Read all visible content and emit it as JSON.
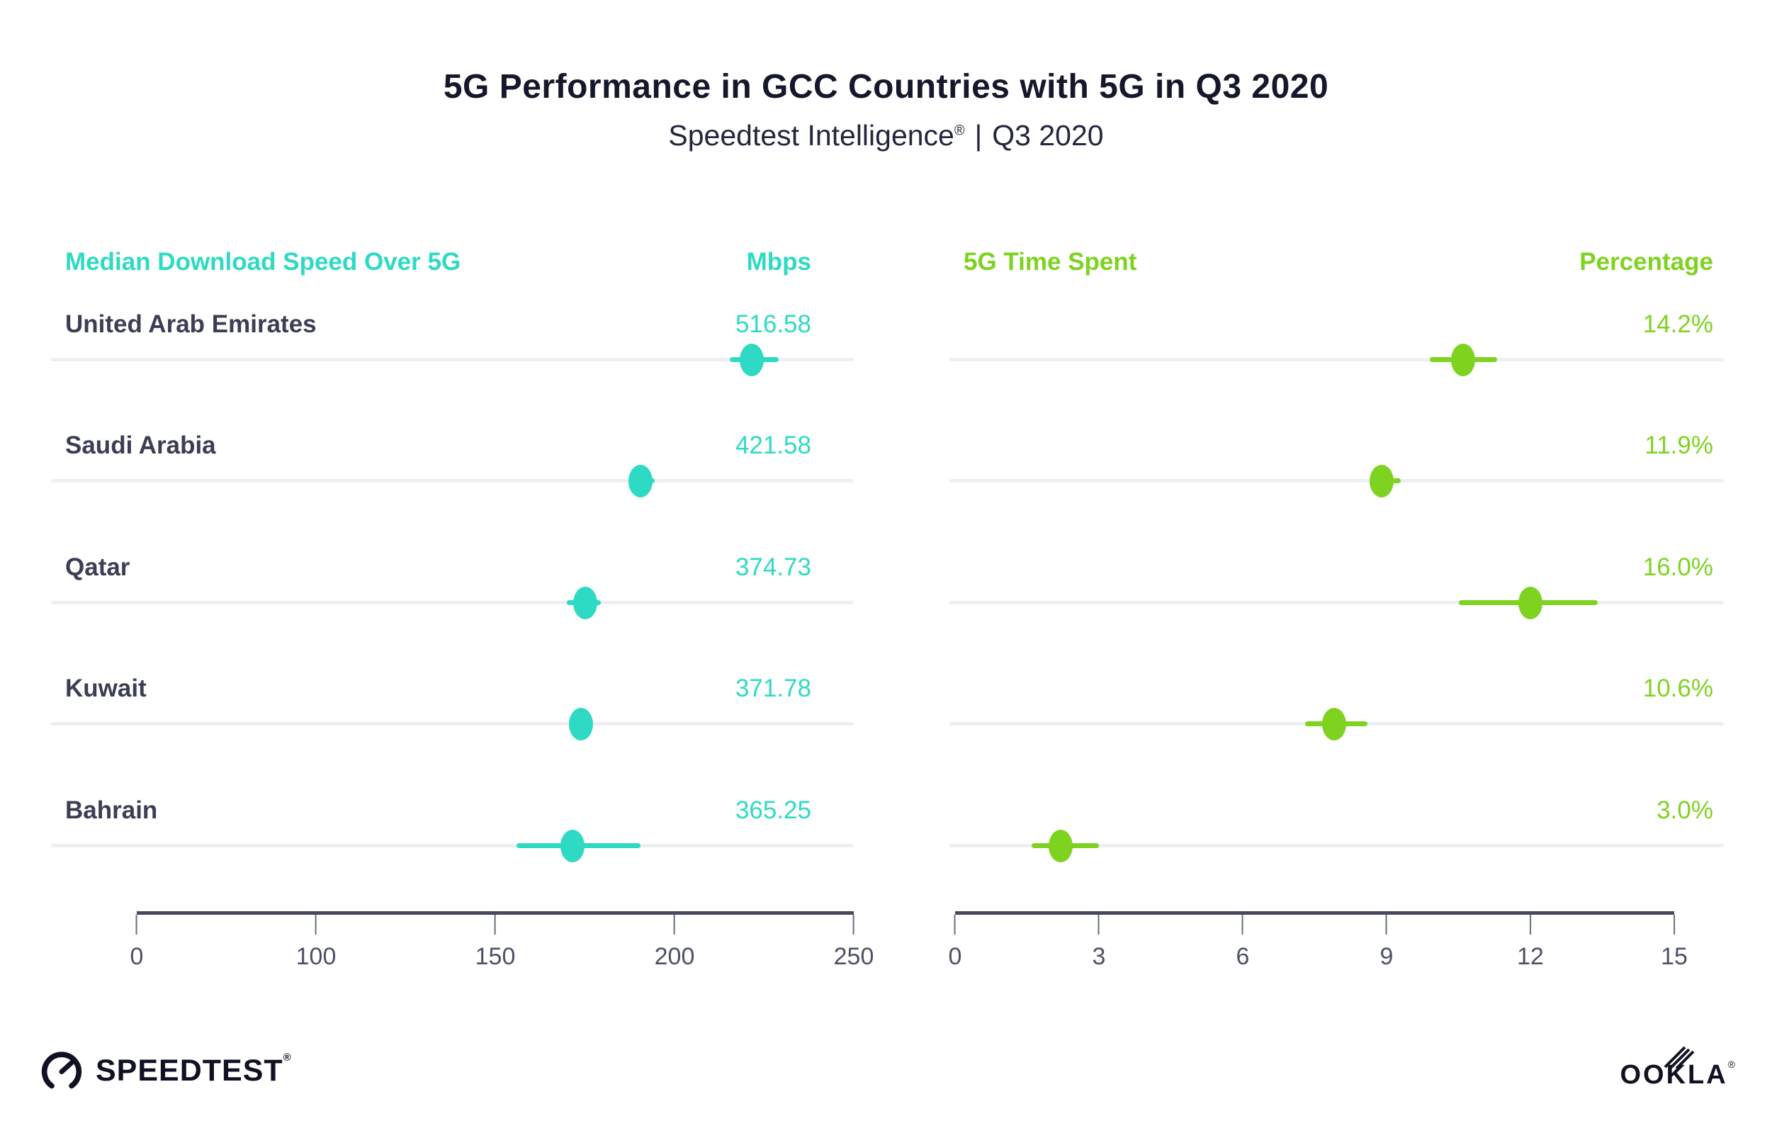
{
  "page": {
    "title": "5G Performance in GCC Countries with 5G in Q3 2020",
    "subtitle_brand": "Speedtest Intelligence",
    "subtitle_reg": "®",
    "subtitle_divider": "|",
    "subtitle_period": "Q3 2020"
  },
  "footer": {
    "speedtest_label": "SPEEDTEST",
    "speedtest_reg": "®",
    "ookla_label": "OOKLA",
    "ookla_reg": "®"
  },
  "colors": {
    "teal_accent": "#2edac3",
    "green_accent": "#7ed321",
    "title_dark": "#15172b",
    "country_label": "#3b3e54",
    "axis_line": "#474a5e",
    "axis_tick_label": "#4e5166",
    "row_track_gray": "#edeff2",
    "background": "#ffffff"
  },
  "chart_data": [
    {
      "type": "scatter",
      "subtype": "dot-strip-plot-with-error-bars",
      "panel_title": "Median Download Speed Over 5G",
      "value_header": "Mbps",
      "accent_color": "#2edac3",
      "axis_ticks": [
        "0",
        "100",
        "150",
        "200",
        "250"
      ],
      "axis_layout_note": "tick labels evenly spaced along axis; dot positions read off that scale",
      "categories": [
        "United Arab Emirates",
        "Saudi Arabia",
        "Qatar",
        "Kuwait",
        "Bahrain"
      ],
      "values": [
        516.58,
        421.58,
        374.73,
        371.78,
        365.25
      ],
      "rows": [
        {
          "country": "United Arab Emirates",
          "value_label": "516.58",
          "value": 516.58,
          "plotted_at": 221.5,
          "whisker_low": 215.5,
          "whisker_high": 229
        },
        {
          "country": "Saudi Arabia",
          "value_label": "421.58",
          "value": 421.58,
          "plotted_at": 190.5,
          "whisker_low": 189,
          "whisker_high": 194.5
        },
        {
          "country": "Qatar",
          "value_label": "374.73",
          "value": 374.73,
          "plotted_at": 175,
          "whisker_low": 170,
          "whisker_high": 179.5
        },
        {
          "country": "Kuwait",
          "value_label": "371.78",
          "value": 371.78,
          "plotted_at": 174,
          "whisker_low": 172,
          "whisker_high": 177
        },
        {
          "country": "Bahrain",
          "value_label": "365.25",
          "value": 365.25,
          "plotted_at": 171.5,
          "whisker_low": 156,
          "whisker_high": 190.5
        }
      ]
    },
    {
      "type": "scatter",
      "subtype": "dot-strip-plot-with-error-bars",
      "panel_title": "5G Time Spent",
      "value_header": "Percentage",
      "accent_color": "#7ed321",
      "axis_ticks": [
        "0",
        "3",
        "6",
        "9",
        "12",
        "15"
      ],
      "axis_layout_note": "linear 0-15 axis; dot positions read off that scale",
      "categories": [
        "United Arab Emirates",
        "Saudi Arabia",
        "Qatar",
        "Kuwait",
        "Bahrain"
      ],
      "values": [
        14.2,
        11.9,
        16.0,
        10.6,
        3.0
      ],
      "rows": [
        {
          "country": "United Arab Emirates",
          "value_label": "14.2%",
          "value": 14.2,
          "plotted_at": 10.6,
          "whisker_low": 9.9,
          "whisker_high": 11.3
        },
        {
          "country": "Saudi Arabia",
          "value_label": "11.9%",
          "value": 11.9,
          "plotted_at": 8.9,
          "whisker_low": 8.8,
          "whisker_high": 9.3
        },
        {
          "country": "Qatar",
          "value_label": "16.0%",
          "value": 16.0,
          "plotted_at": 12.0,
          "whisker_low": 10.5,
          "whisker_high": 13.4
        },
        {
          "country": "Kuwait",
          "value_label": "10.6%",
          "value": 10.6,
          "plotted_at": 7.9,
          "whisker_low": 7.3,
          "whisker_high": 8.6
        },
        {
          "country": "Bahrain",
          "value_label": "3.0%",
          "value": 3.0,
          "plotted_at": 2.2,
          "whisker_low": 1.6,
          "whisker_high": 3.0
        }
      ]
    }
  ]
}
